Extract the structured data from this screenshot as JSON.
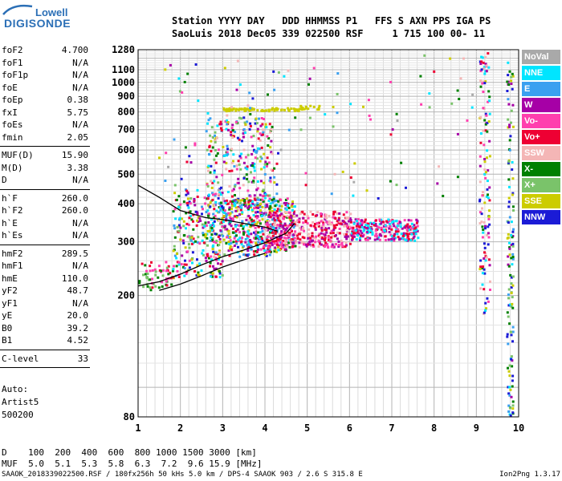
{
  "logo": {
    "line1": "Lowell",
    "line2": "DIGISONDE"
  },
  "header": {
    "line1": "Station YYYY DAY   DDD HHMMSS P1   FFS S AXN PPS IGA PS",
    "line2": "SaoLuis 2018 Dec05 339 022500 RSF     1 715 100 00- 11"
  },
  "params": {
    "group1": [
      {
        "label": "foF2",
        "value": "4.700"
      },
      {
        "label": "foF1",
        "value": "N/A"
      },
      {
        "label": "foF1p",
        "value": "N/A"
      },
      {
        "label": "foE",
        "value": "N/A"
      },
      {
        "label": "foEp",
        "value": "0.38"
      },
      {
        "label": "fxI",
        "value": "5.75"
      },
      {
        "label": "foEs",
        "value": "N/A"
      },
      {
        "label": "fmin",
        "value": "2.05"
      }
    ],
    "group2": [
      {
        "label": "MUF(D)",
        "value": "15.90"
      },
      {
        "label": "M(D)",
        "value": "3.38"
      },
      {
        "label": "D",
        "value": "N/A"
      }
    ],
    "group3": [
      {
        "label": "h`F",
        "value": "260.0"
      },
      {
        "label": "h`F2",
        "value": "260.0"
      },
      {
        "label": "h`E",
        "value": "N/A"
      },
      {
        "label": "h`Es",
        "value": "N/A"
      }
    ],
    "group4": [
      {
        "label": "hmF2",
        "value": "289.5"
      },
      {
        "label": "hmF1",
        "value": "N/A"
      },
      {
        "label": "hmE",
        "value": "110.0"
      },
      {
        "label": "yF2",
        "value": "48.7"
      },
      {
        "label": "yF1",
        "value": "N/A"
      },
      {
        "label": "yE",
        "value": "20.0"
      },
      {
        "label": "B0",
        "value": "39.2"
      },
      {
        "label": "B1",
        "value": "4.52"
      }
    ],
    "group5": [
      {
        "label": "C-level",
        "value": "33"
      }
    ]
  },
  "autoscale": {
    "line1": "Auto:",
    "line2": "Artist5",
    "line3": "500200"
  },
  "legend": [
    {
      "label": "NoVal",
      "color": "#a9a9a9"
    },
    {
      "label": "NNE",
      "color": "#00e5ff"
    },
    {
      "label": "E",
      "color": "#3aa0f0"
    },
    {
      "label": "W",
      "color": "#a600a6"
    },
    {
      "label": "Vo-",
      "color": "#ff3fae"
    },
    {
      "label": "Vo+",
      "color": "#ee0033"
    },
    {
      "label": "SSW",
      "color": "#f4b6b6"
    },
    {
      "label": "X-",
      "color": "#008000"
    },
    {
      "label": "X+",
      "color": "#7ac36a"
    },
    {
      "label": "SSE",
      "color": "#cccc00"
    },
    {
      "label": "NNW",
      "color": "#1b1bd6"
    }
  ],
  "dmuf": {
    "d_row": "D    100  200  400  600  800 1000 1500 3000 [km]",
    "muf_row": "MUF  5.0  5.1  5.3  5.8  6.3  7.2  9.6 15.9 [MHz]"
  },
  "footer": "SAAOK_2018339022500.RSF / 180fx256h 50 kHs 5.0 km / DPS-4 SAAOK 903 / 2.6 S 315.8 E",
  "version": "Ion2Png 1.3.17",
  "chart_data": {
    "type": "scatter",
    "xlim": [
      1,
      10
    ],
    "ylim": [
      80,
      1280
    ],
    "y_scale": "log",
    "x_ticks": [
      1,
      2,
      3,
      4,
      5,
      6,
      7,
      8,
      9,
      10
    ],
    "y_ticks": [
      80,
      200,
      300,
      400,
      500,
      600,
      700,
      800,
      900,
      1000,
      1100,
      1280
    ],
    "grid": true,
    "traces": [
      {
        "name": "F2-trace",
        "x": [
          1.0,
          1.5,
          2.0,
          2.5,
          3.0,
          3.5,
          4.0,
          4.5,
          4.7
        ],
        "y": [
          215,
          222,
          235,
          252,
          268,
          282,
          298,
          320,
          345
        ]
      },
      {
        "name": "X-trace",
        "x": [
          1.5,
          2.0,
          2.5,
          3.0,
          3.5,
          4.0
        ],
        "y": [
          208,
          218,
          232,
          248,
          262,
          275
        ]
      },
      {
        "name": "upper-trace",
        "x": [
          1.0,
          1.5,
          2.0,
          2.6,
          3.0,
          3.5,
          4.0,
          4.3
        ],
        "y": [
          460,
          420,
          380,
          360,
          355,
          345,
          335,
          325
        ]
      }
    ],
    "clusters": [
      {
        "x": [
          1.0,
          1.8
        ],
        "y": [
          210,
          260
        ],
        "density": 60,
        "colors": [
          "Vo+",
          "Vo-",
          "X-",
          "X+"
        ]
      },
      {
        "x": [
          1.8,
          3.0
        ],
        "y": [
          230,
          450
        ],
        "density": 260,
        "colors": [
          "Vo+",
          "Vo-",
          "X-",
          "X+",
          "SSE",
          "W",
          "NNW",
          "E",
          "NNE"
        ]
      },
      {
        "x": [
          2.6,
          4.2
        ],
        "y": [
          270,
          780
        ],
        "density": 420,
        "colors": [
          "SSE",
          "Vo+",
          "Vo-",
          "X+",
          "X-",
          "W",
          "NNW",
          "E",
          "NNE",
          "SSW"
        ]
      },
      {
        "x": [
          3.0,
          4.7
        ],
        "y": [
          280,
          420
        ],
        "density": 380,
        "colors": [
          "Vo+",
          "Vo-",
          "W",
          "X-",
          "SSE",
          "NNE",
          "E"
        ]
      },
      {
        "x": [
          4.0,
          6.0
        ],
        "y": [
          290,
          380
        ],
        "density": 380,
        "colors": [
          "Vo+",
          "Vo-",
          "W",
          "SSW"
        ]
      },
      {
        "x": [
          6.0,
          7.6
        ],
        "y": [
          305,
          360
        ],
        "density": 260,
        "colors": [
          "Vo+",
          "Vo-",
          "W",
          "NNE"
        ]
      },
      {
        "x": [
          3.0,
          4.8
        ],
        "y": [
          812,
          830
        ],
        "density": 80,
        "colors": [
          "SSE"
        ]
      },
      {
        "x": [
          4.8,
          5.6
        ],
        "y": [
          820,
          845
        ],
        "density": 15,
        "colors": [
          "SSE"
        ]
      },
      {
        "x": [
          9.05,
          9.3
        ],
        "y": [
          170,
          1280
        ],
        "density": 130,
        "colors": [
          "Vo+",
          "Vo-",
          "NNW",
          "W",
          "X-",
          "SSE",
          "SSW",
          "NNE"
        ]
      },
      {
        "x": [
          9.7,
          9.85
        ],
        "y": [
          80,
          1200
        ],
        "density": 130,
        "colors": [
          "NNW",
          "X-",
          "E",
          "NNE",
          "W",
          "SSE",
          "X+"
        ]
      },
      {
        "x": [
          1.4,
          9.0
        ],
        "y": [
          420,
          1250
        ],
        "density": 120,
        "colors": [
          "NNE",
          "E",
          "W",
          "Vo-",
          "Vo+",
          "SSE",
          "NNW",
          "X-",
          "X+",
          "SSW",
          "NoVal"
        ]
      }
    ]
  }
}
